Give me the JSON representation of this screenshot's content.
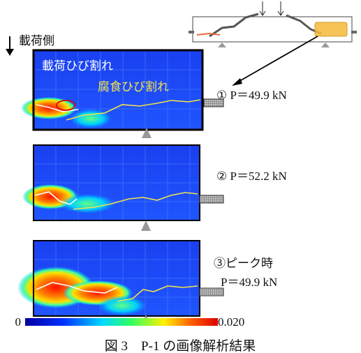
{
  "load_side": "載荷側",
  "panel_1": {
    "crack_load": "載荷ひび割れ",
    "crack_corrosion": "腐食ひび割れ",
    "label": "①  P＝49.9 kN"
  },
  "panel_2": {
    "label": "②  P＝52.2 kN"
  },
  "panel_3": {
    "label_line_1": "③ピーク時",
    "label_line_2": "P＝49.9 kN"
  },
  "colorbar": {
    "min": "0",
    "max": "0.020"
  },
  "caption": "図 3　P-1 の画像解析結果"
}
